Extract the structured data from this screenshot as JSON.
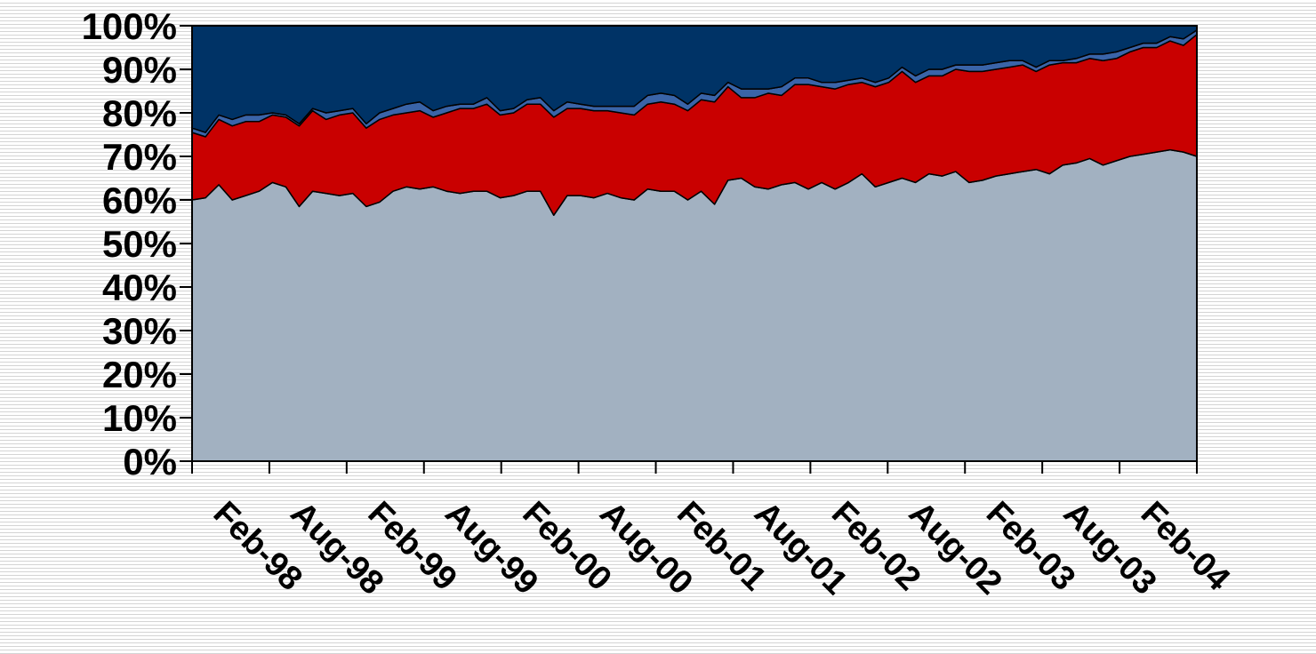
{
  "chart_data": {
    "type": "area",
    "stacked": "percent",
    "title": "",
    "xlabel": "",
    "ylabel": "",
    "ylim": [
      0,
      100
    ],
    "yticks": [
      "0%",
      "10%",
      "20%",
      "30%",
      "40%",
      "50%",
      "60%",
      "70%",
      "80%",
      "90%",
      "100%"
    ],
    "xticks": [
      "Feb-98",
      "Aug-98",
      "Feb-99",
      "Aug-99",
      "Feb-00",
      "Aug-00",
      "Feb-01",
      "Aug-01",
      "Feb-02",
      "Aug-02",
      "Feb-03",
      "Aug-03",
      "Feb-04"
    ],
    "x": [
      "Feb-98",
      "Mar-98",
      "Apr-98",
      "May-98",
      "Jun-98",
      "Jul-98",
      "Aug-98",
      "Sep-98",
      "Oct-98",
      "Nov-98",
      "Dec-98",
      "Jan-99",
      "Feb-99",
      "Mar-99",
      "Apr-99",
      "May-99",
      "Jun-99",
      "Jul-99",
      "Aug-99",
      "Sep-99",
      "Oct-99",
      "Nov-99",
      "Dec-99",
      "Jan-00",
      "Feb-00",
      "Mar-00",
      "Apr-00",
      "May-00",
      "Jun-00",
      "Jul-00",
      "Aug-00",
      "Sep-00",
      "Oct-00",
      "Nov-00",
      "Dec-00",
      "Jan-01",
      "Feb-01",
      "Mar-01",
      "Apr-01",
      "May-01",
      "Jun-01",
      "Jul-01",
      "Aug-01",
      "Sep-01",
      "Oct-01",
      "Nov-01",
      "Dec-01",
      "Jan-02",
      "Feb-02",
      "Mar-02",
      "Apr-02",
      "May-02",
      "Jun-02",
      "Jul-02",
      "Aug-02",
      "Sep-02",
      "Oct-02",
      "Nov-02",
      "Dec-02",
      "Jan-03",
      "Feb-03",
      "Mar-03",
      "Apr-03",
      "May-03",
      "Jun-03",
      "Jul-03",
      "Aug-03",
      "Sep-03",
      "Oct-03",
      "Nov-03",
      "Dec-03",
      "Jan-04",
      "Feb-04",
      "Mar-04",
      "Apr-04",
      "May-04"
    ],
    "series": [
      {
        "color": "#a2b1c1",
        "values": [
          60,
          60.5,
          63.5,
          60,
          61,
          62,
          64,
          63,
          58.5,
          62,
          61.5,
          61,
          61.5,
          58.5,
          59.5,
          62,
          63,
          62.5,
          63,
          62,
          61.5,
          62,
          62,
          60.5,
          61,
          62,
          62,
          56.5,
          61,
          61,
          60.5,
          61.5,
          60.5,
          60,
          62.5,
          62,
          62,
          60,
          62,
          59,
          64.5,
          65,
          63,
          62.5,
          63.5,
          64,
          62.5,
          64,
          62.5,
          64,
          66,
          63,
          64,
          65,
          64,
          66,
          65.5,
          66.5,
          64,
          64.5,
          65.5,
          66,
          66.5,
          67,
          66,
          68,
          68.5,
          69.5,
          68,
          69,
          70,
          70.5,
          71,
          71.5,
          71,
          70
        ]
      },
      {
        "color": "#c90000",
        "values": [
          15.5,
          14,
          15,
          17,
          17,
          16,
          15.5,
          16,
          18.5,
          18.5,
          17,
          18.5,
          18.5,
          18,
          19,
          17.5,
          17,
          18,
          16,
          18,
          19.5,
          19,
          20,
          19,
          19,
          20,
          20,
          22.5,
          20,
          20,
          20,
          19,
          19.5,
          19.5,
          19.5,
          20.5,
          20,
          20.5,
          21,
          23.5,
          21.5,
          18.5,
          20.5,
          22,
          20.5,
          22.5,
          24,
          22,
          23,
          22.5,
          21,
          23,
          23,
          24.5,
          23,
          22.5,
          23,
          23.5,
          25.5,
          25,
          24.5,
          24.5,
          24.5,
          22.5,
          25,
          23.5,
          23,
          23,
          24,
          23.5,
          24,
          24.5,
          24,
          25,
          24.5,
          28
        ]
      },
      {
        "color": "#3a64a8",
        "values": [
          1,
          1,
          1,
          1.5,
          1.5,
          1.5,
          0.5,
          0.5,
          0.5,
          0.5,
          1.5,
          1,
          1,
          1,
          1.5,
          1.5,
          2,
          2,
          1.5,
          1.5,
          1,
          1,
          1.5,
          1,
          1,
          1,
          1.5,
          1.5,
          1.5,
          1,
          1,
          1,
          1.5,
          2,
          2,
          2,
          2,
          1.5,
          1.5,
          1.5,
          1,
          2,
          2,
          1,
          2,
          1.5,
          1.5,
          1,
          1.5,
          1,
          1,
          1,
          1,
          1,
          1.5,
          1.5,
          1.5,
          1,
          1.5,
          1.5,
          1.5,
          1.5,
          1,
          1,
          1,
          0.5,
          1,
          1,
          1.5,
          1.5,
          1,
          1,
          1,
          1,
          1.5,
          1
        ]
      },
      {
        "color": "#003366",
        "values": [
          23.5,
          24.5,
          20.5,
          21.5,
          20.5,
          20.5,
          20,
          20.5,
          22.5,
          19,
          20,
          19.5,
          19,
          22.5,
          20,
          19,
          18,
          17.5,
          19.5,
          18.5,
          18,
          18,
          16.5,
          19.5,
          19,
          17,
          16.5,
          19.5,
          17.5,
          18,
          18.5,
          18.5,
          18.5,
          18.5,
          16,
          15.5,
          16,
          18,
          15.5,
          16,
          13,
          14.5,
          14.5,
          14.5,
          14,
          12,
          12,
          13,
          13,
          12.5,
          12,
          13,
          12,
          9.5,
          11.5,
          10,
          10,
          9,
          9,
          9,
          8.5,
          8,
          8,
          9.5,
          8,
          8,
          7.5,
          6.5,
          6.5,
          6,
          5,
          4,
          4,
          2.5,
          3,
          1
        ]
      }
    ]
  }
}
